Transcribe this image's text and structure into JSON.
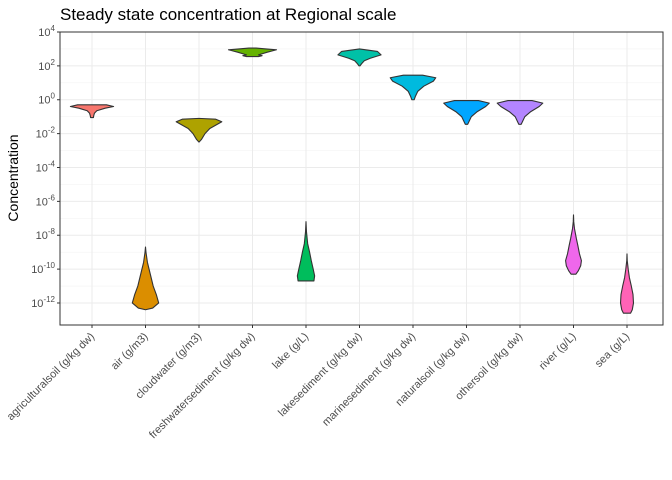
{
  "chart_data": {
    "type": "violin",
    "title": "Steady state concentration at Regional scale",
    "xlabel": "",
    "ylabel": "Concentration",
    "yscale": "log10",
    "ylim_log10": [
      -13.3,
      4
    ],
    "yticks": [
      {
        "base": "10",
        "exp": "4",
        "log10": 4
      },
      {
        "base": "10",
        "exp": "2",
        "log10": 2
      },
      {
        "base": "10",
        "exp": "0",
        "log10": 0
      },
      {
        "base": "10",
        "exp": "-2",
        "log10": -2
      },
      {
        "base": "10",
        "exp": "-4",
        "log10": -4
      },
      {
        "base": "10",
        "exp": "-6",
        "log10": -6
      },
      {
        "base": "10",
        "exp": "-8",
        "log10": -8
      },
      {
        "base": "10",
        "exp": "-10",
        "log10": -10
      },
      {
        "base": "10",
        "exp": "-12",
        "log10": -12
      }
    ],
    "grid": true,
    "legend": "none",
    "categories": [
      "agriculturalsoil (g/kg dw)",
      "air (g/m3)",
      "cloudwater (g/m3)",
      "freshwatersediment (g/kg dw)",
      "lake (g/L)",
      "lakesediment (g/kg dw)",
      "marinesediment (g/kg dw)",
      "naturalsoil (g/kg dw)",
      "othersoil (g/kg dw)",
      "river (g/L)",
      "sea (g/L)"
    ],
    "series": [
      {
        "category": "agriculturalsoil (g/kg dw)",
        "color": "#F8766D",
        "min_log10": -1.05,
        "max_log10": -0.3,
        "density": [
          [
            -1.05,
            0.06
          ],
          [
            -0.95,
            0.07
          ],
          [
            -0.8,
            0.1
          ],
          [
            -0.65,
            0.2
          ],
          [
            -0.5,
            0.55
          ],
          [
            -0.4,
            0.9
          ],
          [
            -0.3,
            0.6
          ]
        ]
      },
      {
        "category": "air (g/m3)",
        "color": "#DB8E00",
        "min_log10": -12.4,
        "max_log10": -8.7,
        "density": [
          [
            -12.4,
            0.0
          ],
          [
            -12.3,
            0.3
          ],
          [
            -12.0,
            0.55
          ],
          [
            -11.5,
            0.45
          ],
          [
            -11.0,
            0.32
          ],
          [
            -10.3,
            0.2
          ],
          [
            -9.6,
            0.08
          ],
          [
            -9.0,
            0.02
          ],
          [
            -8.7,
            0.0
          ]
        ]
      },
      {
        "category": "cloudwater (g/m3)",
        "color": "#AEA200",
        "min_log10": -2.5,
        "max_log10": -1.1,
        "density": [
          [
            -2.5,
            0.0
          ],
          [
            -2.35,
            0.1
          ],
          [
            -2.0,
            0.25
          ],
          [
            -1.7,
            0.45
          ],
          [
            -1.5,
            0.7
          ],
          [
            -1.3,
            0.95
          ],
          [
            -1.15,
            0.7
          ],
          [
            -1.1,
            0.0
          ]
        ]
      },
      {
        "category": "freshwatersediment (g/kg dw)",
        "color": "#64B200",
        "min_log10": 2.55,
        "max_log10": 3.05,
        "density": [
          [
            2.55,
            0.25
          ],
          [
            2.6,
            0.4
          ],
          [
            2.65,
            0.25
          ],
          [
            2.8,
            0.6
          ],
          [
            2.95,
            1.0
          ],
          [
            3.05,
            0.15
          ]
        ]
      },
      {
        "category": "lake (g/L)",
        "color": "#00BD5C",
        "min_log10": -10.7,
        "max_log10": -7.2,
        "density": [
          [
            -10.7,
            0.33
          ],
          [
            -10.4,
            0.36
          ],
          [
            -10.0,
            0.3
          ],
          [
            -9.5,
            0.22
          ],
          [
            -9.0,
            0.15
          ],
          [
            -8.5,
            0.07
          ],
          [
            -7.8,
            0.02
          ],
          [
            -7.2,
            0.0
          ]
        ]
      },
      {
        "category": "lakesediment (g/kg dw)",
        "color": "#00C1A7",
        "min_log10": 2.0,
        "max_log10": 3.0,
        "density": [
          [
            2.0,
            0.02
          ],
          [
            2.15,
            0.1
          ],
          [
            2.3,
            0.2
          ],
          [
            2.45,
            0.45
          ],
          [
            2.65,
            0.9
          ],
          [
            2.85,
            0.75
          ],
          [
            3.0,
            0.0
          ]
        ]
      },
      {
        "category": "marinesediment (g/kg dw)",
        "color": "#00BADE",
        "min_log10": 0.0,
        "max_log10": 1.45,
        "density": [
          [
            0.0,
            0.05
          ],
          [
            0.2,
            0.1
          ],
          [
            0.5,
            0.2
          ],
          [
            0.8,
            0.45
          ],
          [
            1.1,
            0.85
          ],
          [
            1.3,
            0.95
          ],
          [
            1.45,
            0.4
          ]
        ]
      },
      {
        "category": "naturalsoil (g/kg dw)",
        "color": "#00A6FF",
        "min_log10": -1.45,
        "max_log10": -0.05,
        "density": [
          [
            -1.45,
            0.05
          ],
          [
            -1.3,
            0.1
          ],
          [
            -1.0,
            0.2
          ],
          [
            -0.7,
            0.45
          ],
          [
            -0.4,
            0.8
          ],
          [
            -0.2,
            0.95
          ],
          [
            -0.05,
            0.5
          ]
        ]
      },
      {
        "category": "othersoil (g/kg dw)",
        "color": "#B385FF",
        "min_log10": -1.45,
        "max_log10": -0.05,
        "density": [
          [
            -1.45,
            0.05
          ],
          [
            -1.3,
            0.1
          ],
          [
            -1.0,
            0.2
          ],
          [
            -0.7,
            0.45
          ],
          [
            -0.4,
            0.8
          ],
          [
            -0.2,
            0.95
          ],
          [
            -0.05,
            0.5
          ]
        ]
      },
      {
        "category": "river (g/L)",
        "color": "#EF67EB",
        "min_log10": -10.3,
        "max_log10": -6.8,
        "density": [
          [
            -10.3,
            0.1
          ],
          [
            -10.1,
            0.2
          ],
          [
            -9.8,
            0.3
          ],
          [
            -9.5,
            0.33
          ],
          [
            -9.1,
            0.25
          ],
          [
            -8.6,
            0.18
          ],
          [
            -8.2,
            0.12
          ],
          [
            -7.6,
            0.04
          ],
          [
            -7.2,
            0.01
          ],
          [
            -6.8,
            0.0
          ]
        ]
      },
      {
        "category": "sea (g/L)",
        "color": "#FF63B6",
        "min_log10": -12.6,
        "max_log10": -9.1,
        "density": [
          [
            -12.6,
            0.15
          ],
          [
            -12.4,
            0.22
          ],
          [
            -12.0,
            0.27
          ],
          [
            -11.5,
            0.25
          ],
          [
            -11.0,
            0.18
          ],
          [
            -10.5,
            0.1
          ],
          [
            -10.0,
            0.05
          ],
          [
            -9.5,
            0.01
          ],
          [
            -9.1,
            0.0
          ]
        ]
      }
    ]
  }
}
